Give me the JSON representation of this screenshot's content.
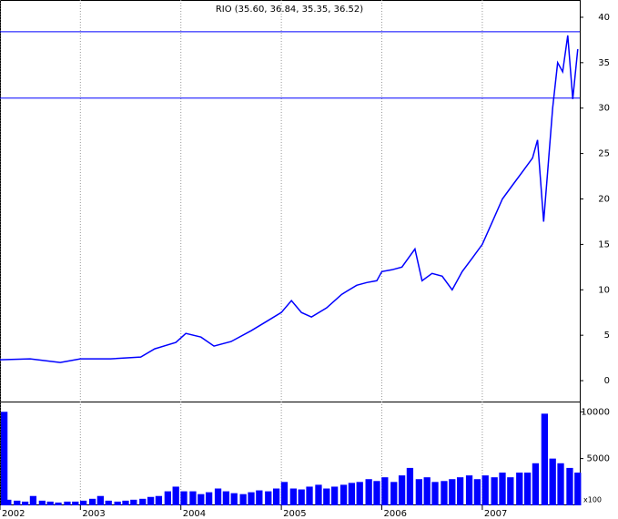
{
  "chart_data": [
    {
      "type": "line",
      "title": "RIO (35.60, 36.84, 35.35, 36.52)",
      "x": [
        2002.2,
        2002.5,
        2002.8,
        2003.0,
        2003.3,
        2003.6,
        2003.74,
        2003.95,
        2004.05,
        2004.2,
        2004.33,
        2004.5,
        2004.7,
        2004.85,
        2005.0,
        2005.1,
        2005.2,
        2005.3,
        2005.45,
        2005.6,
        2005.75,
        2005.85,
        2005.95,
        2006.0,
        2006.1,
        2006.2,
        2006.33,
        2006.4,
        2006.5,
        2006.6,
        2006.7,
        2006.8,
        2006.9,
        2007.0,
        2007.1,
        2007.2,
        2007.3,
        2007.4,
        2007.5,
        2007.55,
        2007.61,
        2007.65,
        2007.7,
        2007.75,
        2007.8,
        2007.85,
        2007.9,
        2007.95
      ],
      "series": [
        {
          "name": "RIO",
          "color": "#0000ff",
          "values": [
            2.3,
            2.4,
            2.0,
            2.4,
            2.4,
            2.6,
            3.5,
            4.2,
            5.2,
            4.8,
            3.8,
            4.3,
            5.5,
            6.5,
            7.5,
            8.8,
            7.5,
            7.0,
            8.0,
            9.5,
            10.5,
            10.8,
            11.0,
            12.0,
            12.2,
            12.5,
            14.5,
            11.0,
            11.8,
            11.5,
            10.0,
            12.0,
            13.5,
            15.0,
            17.5,
            20.0,
            21.5,
            23.0,
            24.5,
            26.5,
            17.5,
            23.0,
            30.0,
            35.0,
            34.0,
            38.0,
            31.0,
            36.5
          ]
        }
      ],
      "hlines": [
        38.4,
        31.1
      ],
      "hline_color": "#0000ff",
      "xlim": [
        2002.2,
        2007.97
      ],
      "xticks": [
        {
          "value": 2002.2,
          "label": "2002"
        },
        2003,
        2004,
        2005,
        2006,
        2007
      ],
      "ylim": [
        -2.2,
        41.9
      ],
      "yticks": [
        0,
        5,
        10,
        15,
        20,
        25,
        30,
        35,
        40
      ],
      "grid": true
    },
    {
      "type": "bar",
      "unit_label": "x100",
      "color": "#0000ff",
      "x": [
        2002.2,
        2002.28,
        2002.37,
        2002.45,
        2002.53,
        2002.62,
        2002.7,
        2002.78,
        2002.87,
        2002.95,
        2003.03,
        2003.12,
        2003.2,
        2003.28,
        2003.37,
        2003.45,
        2003.53,
        2003.62,
        2003.7,
        2003.78,
        2003.87,
        2003.95,
        2004.03,
        2004.12,
        2004.2,
        2004.28,
        2004.37,
        2004.45,
        2004.53,
        2004.62,
        2004.7,
        2004.78,
        2004.87,
        2004.95,
        2005.03,
        2005.12,
        2005.2,
        2005.28,
        2005.37,
        2005.45,
        2005.53,
        2005.62,
        2005.7,
        2005.78,
        2005.87,
        2005.95,
        2006.03,
        2006.12,
        2006.2,
        2006.28,
        2006.37,
        2006.45,
        2006.53,
        2006.62,
        2006.7,
        2006.78,
        2006.87,
        2006.95,
        2007.03,
        2007.12,
        2007.2,
        2007.28,
        2007.37,
        2007.45,
        2007.53,
        2007.62,
        2007.7,
        2007.78,
        2007.87,
        2007.95
      ],
      "values": [
        10000,
        600,
        500,
        400,
        1000,
        500,
        400,
        300,
        400,
        400,
        500,
        700,
        1000,
        500,
        400,
        500,
        600,
        700,
        900,
        1000,
        1500,
        2000,
        1500,
        1500,
        1200,
        1400,
        1800,
        1500,
        1300,
        1200,
        1400,
        1600,
        1500,
        1800,
        2500,
        1800,
        1700,
        2000,
        2200,
        1800,
        2000,
        2200,
        2400,
        2500,
        2800,
        2600,
        3000,
        2500,
        3200,
        4000,
        2800,
        3000,
        2500,
        2600,
        2800,
        3000,
        3200,
        2800,
        3200,
        3000,
        3500,
        3000,
        3500,
        3500,
        4500,
        9800,
        5000,
        4500,
        4000,
        3500
      ],
      "xlim": [
        2002.2,
        2007.97
      ],
      "ylim": [
        0,
        11000
      ],
      "yticks": [
        5000,
        10000
      ]
    }
  ]
}
